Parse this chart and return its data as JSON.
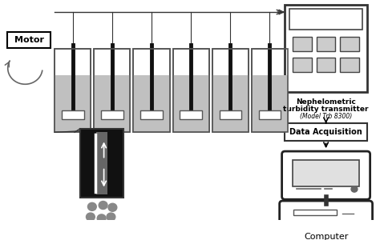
{
  "bg_color": "#ffffff",
  "line_color": "#333333",
  "text_color": "#000000",
  "turbidity_label1": "Nephelometric",
  "turbidity_label2": "turbidity transmitter",
  "turbidity_label3": "(Model Trb 8300)",
  "da_label": "Data Acquisition",
  "computer_label": "Computer",
  "motor_label": "Motor",
  "jar_fill_color": "#c0c0c0",
  "jar_edge_color": "#555555",
  "stirrer_color": "#111111",
  "paddle_color": "#ffffff",
  "zoom_bg_color": "#111111",
  "zoom_rod_color": "#888888",
  "particle_color": "#888888",
  "btn_face_color": "#cccccc"
}
